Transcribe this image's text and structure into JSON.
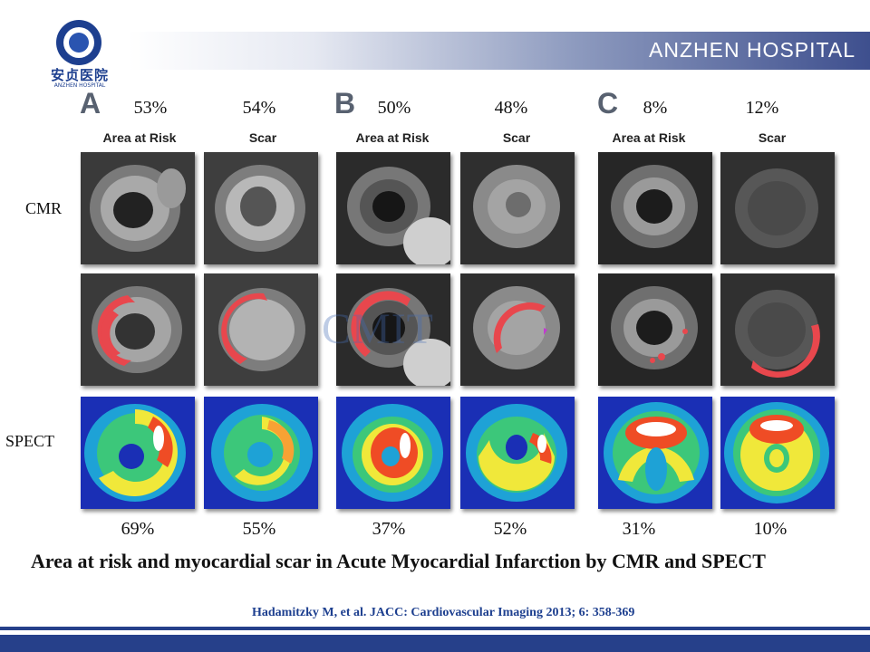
{
  "header": {
    "logo_chinese": "安贞医院",
    "logo_english": "ANZHEN HOSPITAL",
    "banner_title": "ANZHEN HOSPITAL"
  },
  "panels": [
    {
      "letter": "A",
      "area_at_risk_label": "Area at Risk",
      "scar_label": "Scar",
      "cmr_area_at_risk": "53%",
      "cmr_scar": "54%",
      "spect_area_at_risk": "69%",
      "spect_scar": "55%"
    },
    {
      "letter": "B",
      "area_at_risk_label": "Area at Risk",
      "scar_label": "Scar",
      "cmr_area_at_risk": "50%",
      "cmr_scar": "48%",
      "spect_area_at_risk": "37%",
      "spect_scar": "52%"
    },
    {
      "letter": "C",
      "area_at_risk_label": "Area at Risk",
      "scar_label": "Scar",
      "cmr_area_at_risk": "8%",
      "cmr_scar": "12%",
      "spect_area_at_risk": "31%",
      "spect_scar": "10%"
    }
  ],
  "row_labels": {
    "cmr": "CMR",
    "spect": "SPECT"
  },
  "watermark": "CMIT",
  "caption": "Area at risk and myocardial scar in Acute Myocardial Infarction by CMR and SPECT",
  "citation": "Hadamitzky M, et al. JACC: Cardiovascular Imaging 2013; 6: 358-369",
  "colors": {
    "brand_blue": "#1d3f8f",
    "infarct_overlay": "#e8474d",
    "footer_bar": "#26408a"
  }
}
